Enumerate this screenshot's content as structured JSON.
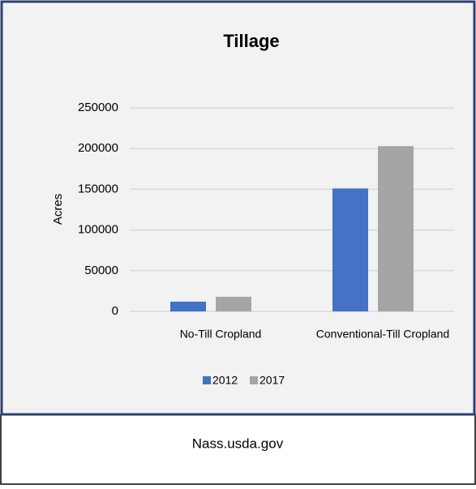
{
  "chart_data": {
    "type": "bar",
    "title": "Tillage",
    "y_label": "Acres",
    "categories": [
      "No-Till Cropland",
      "Conventional-Till Cropland"
    ],
    "series": [
      {
        "name": "2012",
        "color": "#4472c4",
        "values": [
          12000,
          151000
        ]
      },
      {
        "name": "2017",
        "color": "#a5a5a5",
        "values": [
          18000,
          203000
        ]
      }
    ],
    "ylim": [
      0,
      250000
    ],
    "yticks": [
      0,
      50000,
      100000,
      150000,
      200000,
      250000
    ],
    "grid": true,
    "legend": "bottom"
  },
  "caption": "Nass.usda.gov"
}
